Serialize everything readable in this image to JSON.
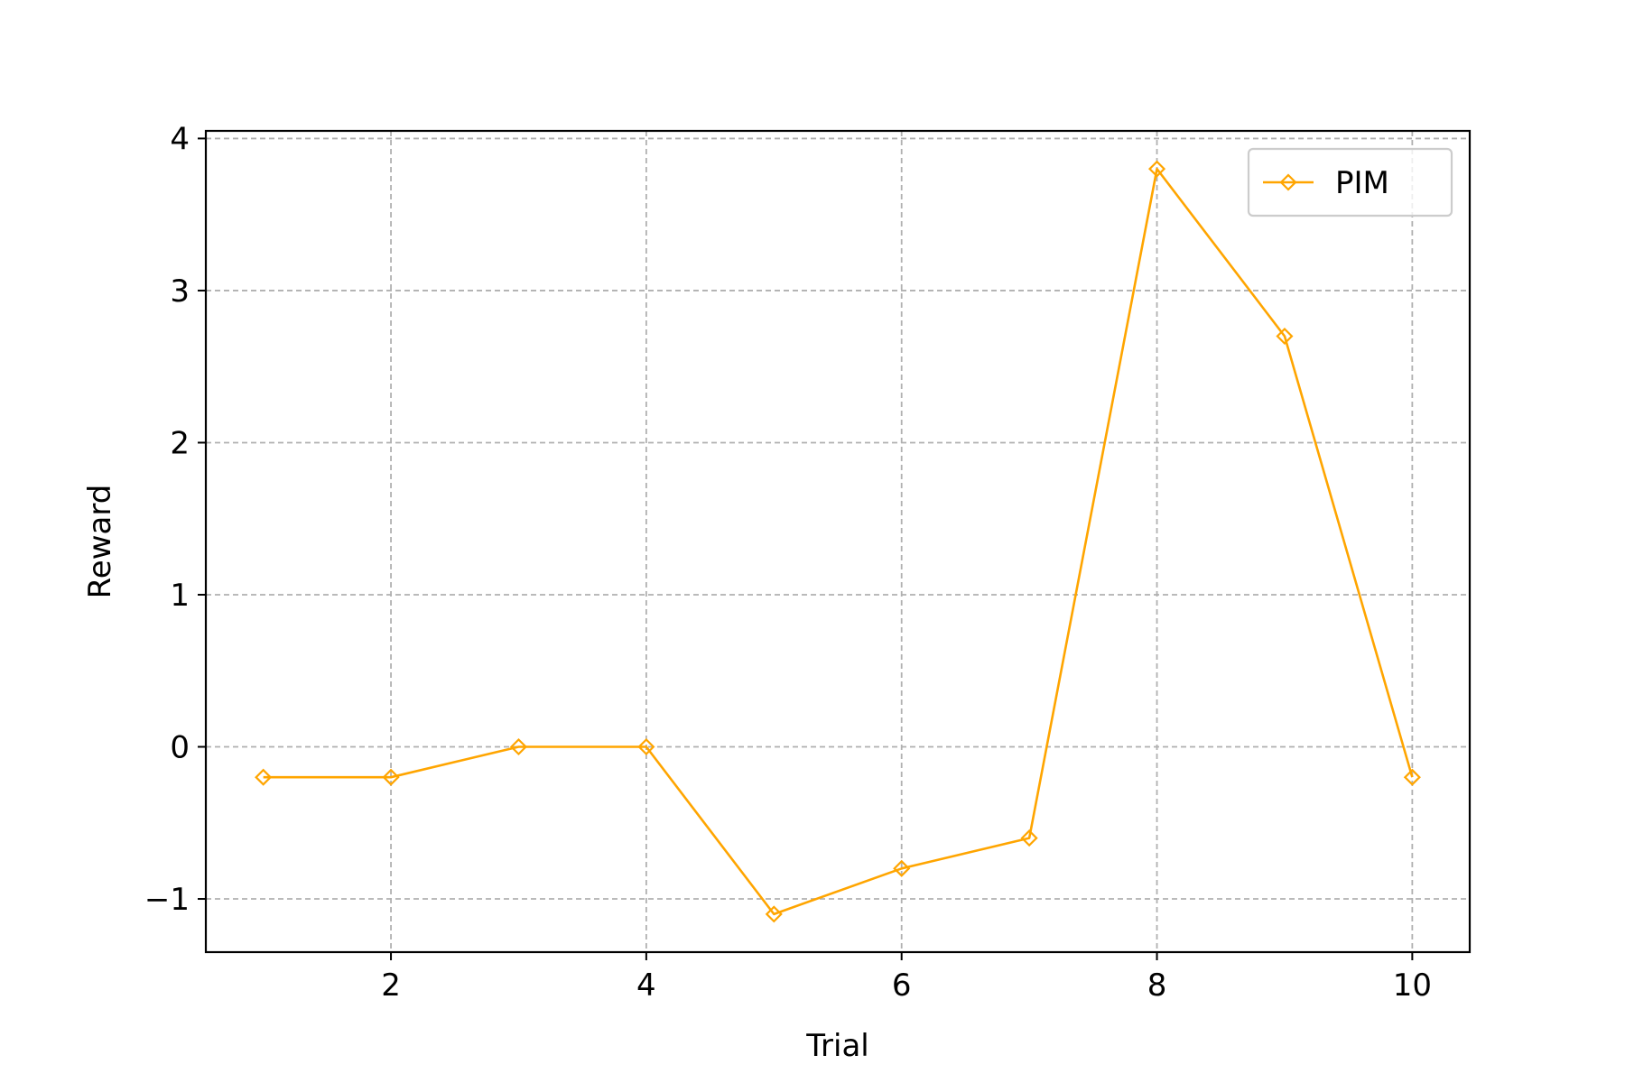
{
  "chart_data": {
    "type": "line",
    "x": [
      1,
      2,
      3,
      4,
      5,
      6,
      7,
      8,
      9,
      10
    ],
    "series": [
      {
        "name": "PIM",
        "values": [
          -0.2,
          -0.2,
          0.0,
          0.0,
          -1.1,
          -0.8,
          -0.6,
          3.8,
          2.7,
          -0.2
        ],
        "color": "#FFA500",
        "marker": "diamond-hollow"
      }
    ],
    "title": "",
    "xlabel": "Trial",
    "ylabel": "Reward",
    "xlim": [
      0.55,
      10.45
    ],
    "ylim": [
      -1.35,
      4.05
    ],
    "xticks": [
      2,
      4,
      6,
      8,
      10
    ],
    "xtick_labels": [
      "2",
      "4",
      "6",
      "8",
      "10"
    ],
    "yticks": [
      -1,
      0,
      1,
      2,
      3,
      4
    ],
    "ytick_labels": [
      "−1",
      "0",
      "1",
      "2",
      "3",
      "4"
    ],
    "grid": true,
    "grid_style": "dashed",
    "grid_color": "#b0b0b0",
    "legend_position": "upper-right"
  }
}
